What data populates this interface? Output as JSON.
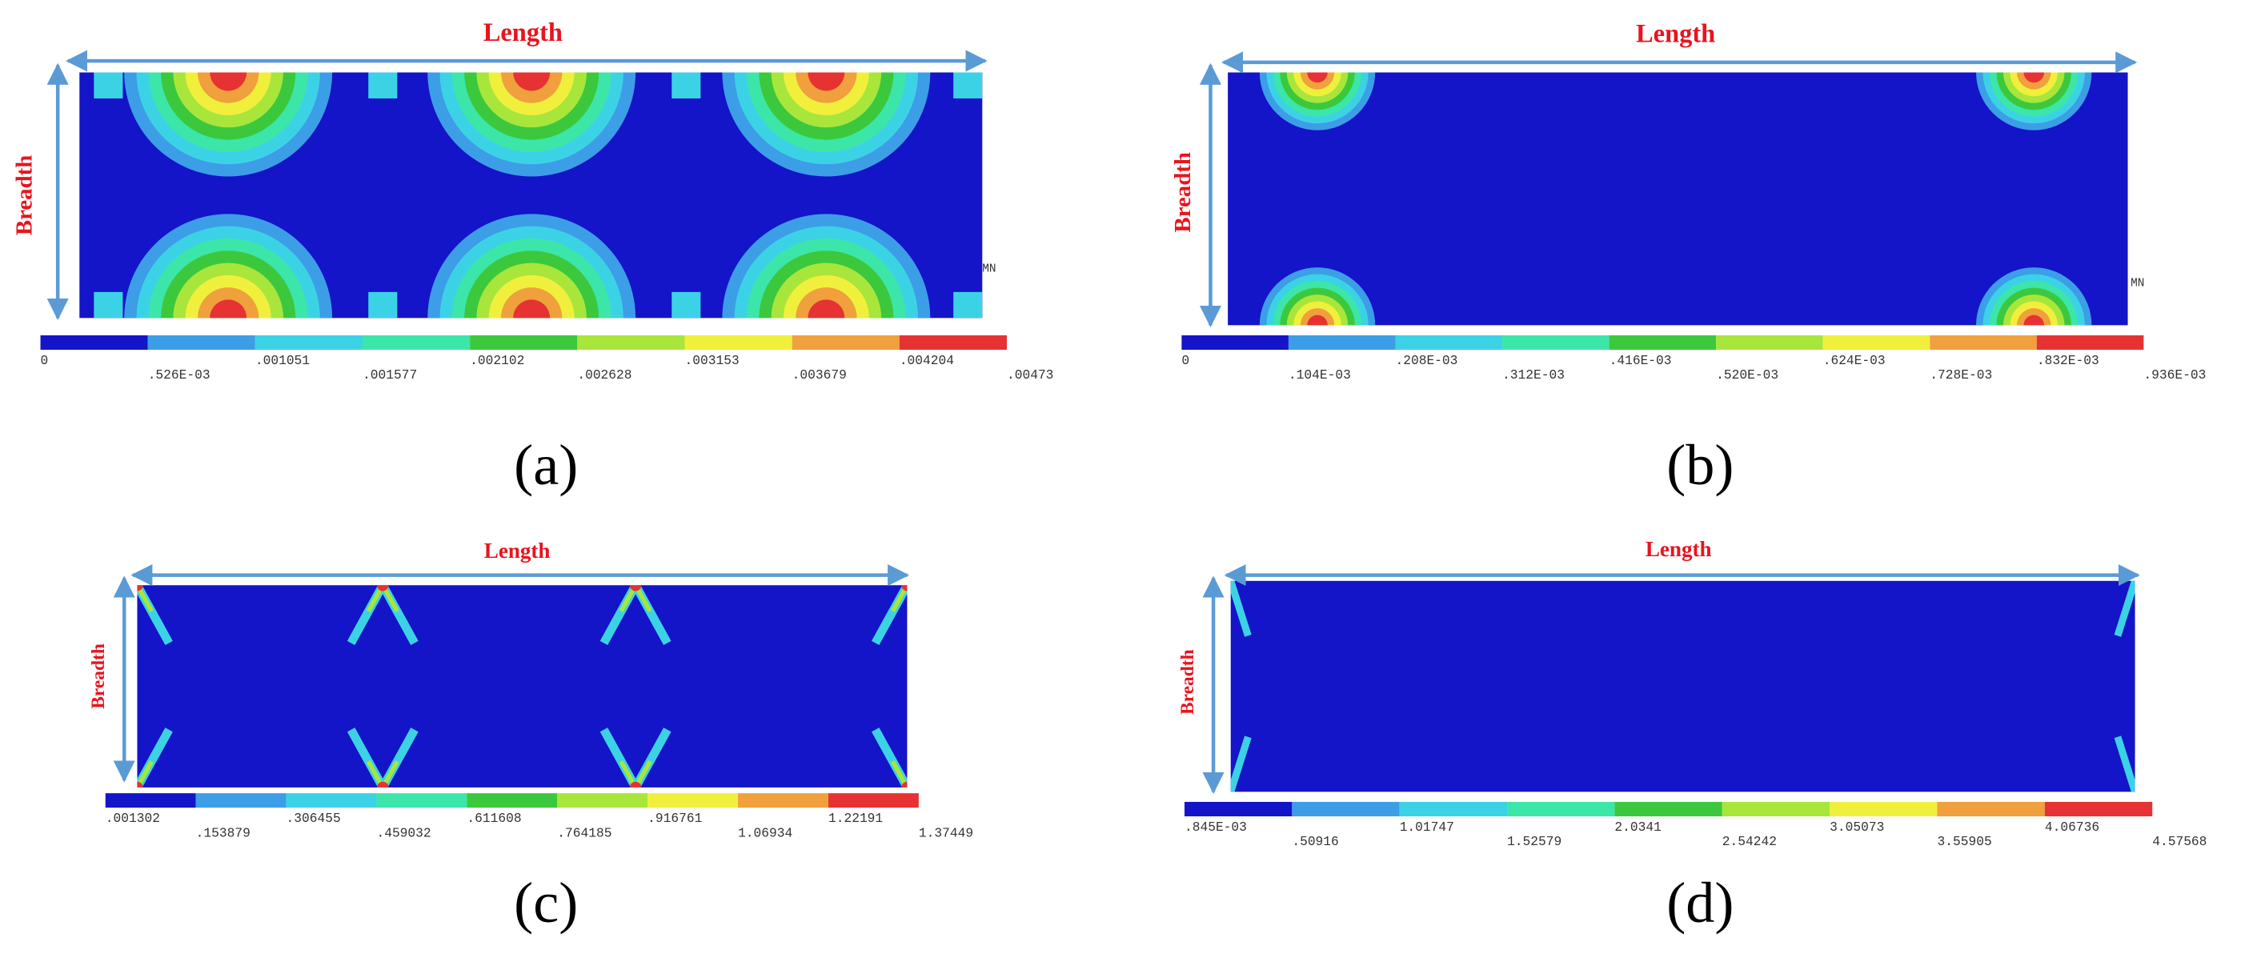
{
  "panels": [
    {
      "label": "(a)",
      "length_label": "Length",
      "breadth_label": "Breadth",
      "corner_label": "MN",
      "legend_labels": [
        "0",
        ".526E-03",
        ".001051",
        ".001577",
        ".002102",
        ".002628",
        ".003153",
        ".003679",
        ".004204",
        ".00473"
      ]
    },
    {
      "label": "(b)",
      "length_label": "Length",
      "breadth_label": "Breadth",
      "corner_label": "MN",
      "legend_labels": [
        "0",
        ".104E-03",
        ".208E-03",
        ".312E-03",
        ".416E-03",
        ".520E-03",
        ".624E-03",
        ".728E-03",
        ".832E-03",
        ".936E-03"
      ]
    },
    {
      "label": "(c)",
      "length_label": "Length",
      "breadth_label": "Breadth",
      "legend_labels": [
        ".001302",
        ".153879",
        ".306455",
        ".459032",
        ".611608",
        ".764185",
        ".916761",
        "1.06934",
        "1.22191",
        "1.37449"
      ]
    },
    {
      "label": "(d)",
      "length_label": "Length",
      "breadth_label": "Breadth",
      "legend_labels": [
        ".845E-03",
        ".50916",
        "1.01747",
        "1.52579",
        "2.0341",
        "2.54242",
        "3.05073",
        "3.55905",
        "4.06736",
        "4.57568"
      ]
    }
  ]
}
